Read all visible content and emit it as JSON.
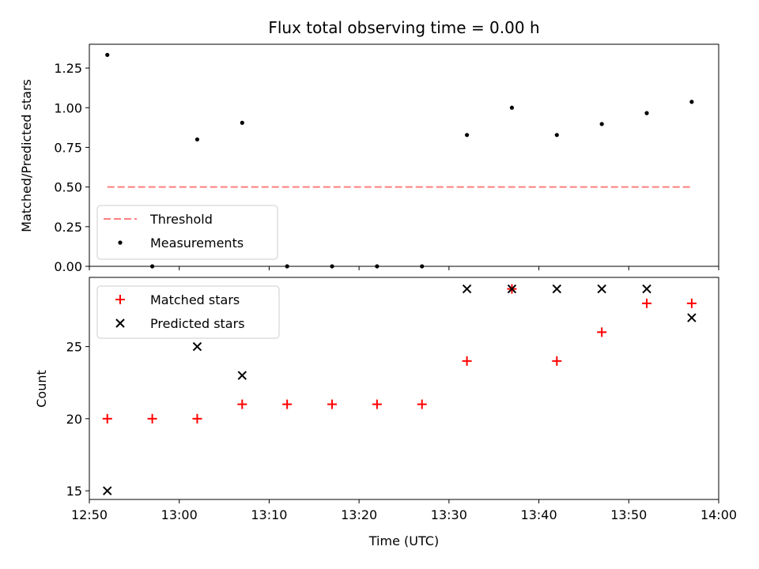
{
  "chart_data": [
    {
      "type": "scatter",
      "title": "Flux total observing time = 0.00 h",
      "xlabel": "",
      "ylabel": "Matched/Predicted stars",
      "xlim": [
        770,
        840
      ],
      "ylim": [
        0,
        1.4
      ],
      "yticks": [
        0.0,
        0.25,
        0.5,
        0.75,
        1.0,
        1.25
      ],
      "ytick_labels": [
        "0.00",
        "0.25",
        "0.50",
        "0.75",
        "1.00",
        "1.25"
      ],
      "legend_position": "lower-left",
      "series": [
        {
          "name": "Threshold",
          "kind": "line",
          "style": "dashed",
          "color": "#ff7f7f",
          "x": [
            772,
            837
          ],
          "y": [
            0.5,
            0.5
          ]
        },
        {
          "name": "Measurements",
          "kind": "points",
          "marker": "dot",
          "color": "#000000",
          "x": [
            772,
            777,
            782,
            787,
            792,
            797,
            802,
            807,
            812,
            817,
            822,
            827,
            832,
            837
          ],
          "y": [
            1.333,
            0.0,
            0.8,
            0.905,
            0.0,
            0.0,
            0.0,
            0.0,
            0.828,
            1.0,
            0.828,
            0.897,
            0.966,
            1.037
          ]
        }
      ]
    },
    {
      "type": "scatter",
      "title": "",
      "xlabel": "Time (UTC)",
      "ylabel": "Count",
      "xlim": [
        770,
        840
      ],
      "ylim": [
        14.4,
        29.8
      ],
      "yticks": [
        15,
        20,
        25
      ],
      "ytick_labels": [
        "15",
        "20",
        "25"
      ],
      "xticks": [
        770,
        780,
        790,
        800,
        810,
        820,
        830,
        840
      ],
      "xtick_labels": [
        "12:50",
        "13:00",
        "13:10",
        "13:20",
        "13:30",
        "13:40",
        "13:50",
        "14:00"
      ],
      "legend_position": "upper-left",
      "series": [
        {
          "name": "Matched stars",
          "kind": "points",
          "marker": "plus",
          "color": "#ff0000",
          "x": [
            772,
            777,
            782,
            787,
            792,
            797,
            802,
            807,
            812,
            817,
            822,
            827,
            832,
            837
          ],
          "y": [
            20,
            20,
            20,
            21,
            21,
            21,
            21,
            21,
            24,
            29,
            24,
            26,
            28,
            28
          ]
        },
        {
          "name": "Predicted stars",
          "kind": "points",
          "marker": "x",
          "color": "#000000",
          "x": [
            772,
            782,
            787,
            812,
            817,
            822,
            827,
            832,
            837
          ],
          "y": [
            15,
            25,
            23,
            29,
            29,
            29,
            29,
            29,
            27
          ]
        }
      ]
    }
  ]
}
